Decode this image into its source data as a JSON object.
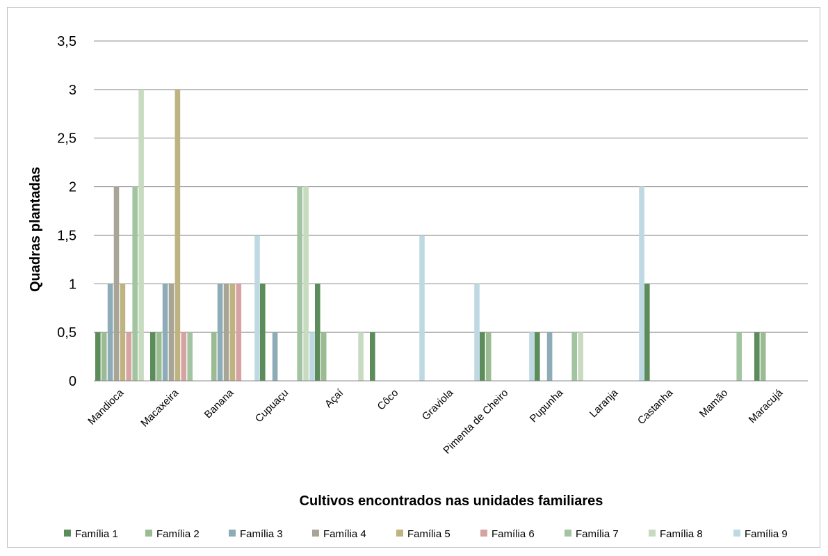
{
  "chart_data": {
    "type": "bar",
    "title": "",
    "xlabel": "Cultivos encontrados nas unidades familiares",
    "ylabel": "Quadras plantadas",
    "ylim": [
      0,
      3.5
    ],
    "yticks": [
      "0",
      "0,5",
      "1",
      "1,5",
      "2",
      "2,5",
      "3",
      "3,5"
    ],
    "grid": true,
    "legend_position": "bottom",
    "categories": [
      "Mandioca",
      "Macaxeira",
      "Banana",
      "Cupuaçu",
      "Açaí",
      "Côco",
      "Graviola",
      "Pimenta de Cheiro",
      "Pupunha",
      "Laranja",
      "Castanha",
      "Mamão",
      "Maracujá"
    ],
    "series": [
      {
        "name": "Família 1",
        "color": "#5b8c5a",
        "values": [
          0.5,
          0.5,
          0,
          1,
          1,
          0.5,
          0,
          0.5,
          0.5,
          0,
          1,
          0,
          0.5
        ]
      },
      {
        "name": "Família 2",
        "color": "#9bbb93",
        "values": [
          0.5,
          0.5,
          0.5,
          0,
          0.5,
          0,
          0,
          0.5,
          0,
          0,
          0,
          0,
          0.5
        ]
      },
      {
        "name": "Família 3",
        "color": "#8eacb7",
        "values": [
          1,
          1,
          1,
          0.5,
          0,
          0,
          0,
          0,
          0.5,
          0,
          0,
          0,
          0
        ]
      },
      {
        "name": "Família 4",
        "color": "#a8a596",
        "values": [
          2,
          1,
          1,
          0,
          0,
          0,
          0,
          0,
          0,
          0,
          0,
          0,
          0
        ]
      },
      {
        "name": "Família 5",
        "color": "#bfb381",
        "values": [
          1,
          3,
          1,
          0,
          0,
          0,
          0,
          0,
          0,
          0,
          0,
          0,
          0
        ]
      },
      {
        "name": "Família 6",
        "color": "#d6a3a3",
        "values": [
          0.5,
          0.5,
          1,
          0,
          0,
          0,
          0,
          0,
          0,
          0,
          0,
          0,
          0
        ]
      },
      {
        "name": "Família 7",
        "color": "#a3c4a1",
        "values": [
          2,
          0.5,
          0,
          2,
          0,
          0,
          0,
          0,
          0.5,
          0,
          0,
          0.5,
          0
        ]
      },
      {
        "name": "Família 8",
        "color": "#c7dbc1",
        "values": [
          3,
          0,
          0,
          2,
          0.5,
          0,
          0,
          0,
          0.5,
          0,
          0,
          0,
          0
        ]
      },
      {
        "name": "Família 9",
        "color": "#bfd9e2",
        "values": [
          0,
          0,
          1.5,
          0.5,
          0,
          1.5,
          1,
          0.5,
          0,
          2,
          0,
          0,
          0
        ]
      }
    ]
  }
}
